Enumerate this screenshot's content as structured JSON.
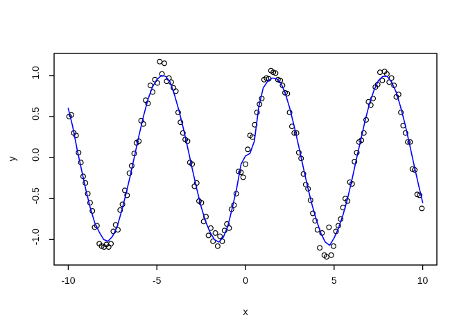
{
  "figure": {
    "kind": "r-base-plot",
    "background": "#ffffff",
    "palette": {
      "curve": "#0000ff",
      "points": "#000000",
      "axis": "#000000",
      "text": "#000000"
    }
  },
  "chart_data": {
    "type": "scatter",
    "title": "",
    "xlabel": "x",
    "ylabel": "y",
    "xlim": [
      -10.8,
      10.8
    ],
    "ylim": [
      -1.31,
      1.27
    ],
    "x_ticks": [
      -10,
      -5,
      0,
      5,
      10
    ],
    "y_ticks": [
      -1.0,
      -0.5,
      0.0,
      0.5,
      1.0
    ],
    "x_tick_labels": [
      "-10",
      "-5",
      "0",
      "5",
      "10"
    ],
    "y_tick_labels": [
      "-1.0",
      "-0.5",
      "0.0",
      "0.5",
      "1.0"
    ],
    "grid": false,
    "legend": null,
    "point_style": {
      "shape": "open-circle",
      "color": "#000000",
      "radius": 3.4
    },
    "series": [
      {
        "name": "observations",
        "type": "points",
        "points": [
          [
            -9.95,
            0.5
          ],
          [
            -9.82,
            0.52
          ],
          [
            -9.69,
            0.3
          ],
          [
            -9.56,
            0.27
          ],
          [
            -9.42,
            0.06
          ],
          [
            -9.29,
            -0.06
          ],
          [
            -9.16,
            -0.23
          ],
          [
            -9.03,
            -0.31
          ],
          [
            -8.9,
            -0.44
          ],
          [
            -8.77,
            -0.55
          ],
          [
            -8.64,
            -0.65
          ],
          [
            -8.51,
            -0.85
          ],
          [
            -8.38,
            -0.83
          ],
          [
            -8.25,
            -1.05
          ],
          [
            -8.12,
            -1.08
          ],
          [
            -7.98,
            -1.09
          ],
          [
            -7.85,
            -1.06
          ],
          [
            -7.72,
            -1.09
          ],
          [
            -7.59,
            -1.05
          ],
          [
            -7.46,
            -0.9
          ],
          [
            -7.33,
            -0.82
          ],
          [
            -7.2,
            -0.88
          ],
          [
            -7.07,
            -0.64
          ],
          [
            -6.94,
            -0.57
          ],
          [
            -6.81,
            -0.4
          ],
          [
            -6.68,
            -0.46
          ],
          [
            -6.55,
            -0.19
          ],
          [
            -6.42,
            -0.1
          ],
          [
            -6.28,
            0.05
          ],
          [
            -6.15,
            0.18
          ],
          [
            -6.02,
            0.2
          ],
          [
            -5.89,
            0.45
          ],
          [
            -5.76,
            0.41
          ],
          [
            -5.63,
            0.7
          ],
          [
            -5.5,
            0.66
          ],
          [
            -5.37,
            0.88
          ],
          [
            -5.24,
            0.8
          ],
          [
            -5.11,
            0.95
          ],
          [
            -4.97,
            0.91
          ],
          [
            -4.84,
            1.17
          ],
          [
            -4.71,
            1.02
          ],
          [
            -4.58,
            1.15
          ],
          [
            -4.45,
            0.93
          ],
          [
            -4.32,
            0.97
          ],
          [
            -4.19,
            0.92
          ],
          [
            -4.06,
            0.85
          ],
          [
            -3.93,
            0.81
          ],
          [
            -3.8,
            0.55
          ],
          [
            -3.67,
            0.43
          ],
          [
            -3.53,
            0.3
          ],
          [
            -3.4,
            0.22
          ],
          [
            -3.27,
            0.2
          ],
          [
            -3.14,
            -0.06
          ],
          [
            -3.01,
            -0.08
          ],
          [
            -2.88,
            -0.35
          ],
          [
            -2.75,
            -0.31
          ],
          [
            -2.62,
            -0.53
          ],
          [
            -2.49,
            -0.55
          ],
          [
            -2.36,
            -0.78
          ],
          [
            -2.23,
            -0.72
          ],
          [
            -2.09,
            -0.95
          ],
          [
            -1.96,
            -0.86
          ],
          [
            -1.83,
            -1.02
          ],
          [
            -1.7,
            -0.92
          ],
          [
            -1.57,
            -1.08
          ],
          [
            -1.44,
            -0.96
          ],
          [
            -1.31,
            -1.02
          ],
          [
            -1.18,
            -0.89
          ],
          [
            -1.05,
            -0.81
          ],
          [
            -0.92,
            -0.86
          ],
          [
            -0.79,
            -0.63
          ],
          [
            -0.65,
            -0.58
          ],
          [
            -0.52,
            -0.44
          ],
          [
            -0.39,
            -0.17
          ],
          [
            -0.26,
            -0.18
          ],
          [
            -0.13,
            -0.24
          ],
          [
            0.0,
            -0.08
          ],
          [
            0.13,
            0.1
          ],
          [
            0.26,
            0.27
          ],
          [
            0.39,
            0.25
          ],
          [
            0.52,
            0.4
          ],
          [
            0.65,
            0.55
          ],
          [
            0.79,
            0.65
          ],
          [
            0.92,
            0.72
          ],
          [
            1.05,
            0.95
          ],
          [
            1.18,
            0.97
          ],
          [
            1.31,
            0.96
          ],
          [
            1.44,
            1.06
          ],
          [
            1.57,
            1.04
          ],
          [
            1.7,
            1.03
          ],
          [
            1.83,
            0.95
          ],
          [
            1.96,
            0.94
          ],
          [
            2.09,
            0.88
          ],
          [
            2.23,
            0.79
          ],
          [
            2.36,
            0.78
          ],
          [
            2.49,
            0.55
          ],
          [
            2.62,
            0.38
          ],
          [
            2.75,
            0.3
          ],
          [
            2.88,
            0.3
          ],
          [
            3.01,
            0.06
          ],
          [
            3.14,
            -0.01
          ],
          [
            3.27,
            -0.2
          ],
          [
            3.4,
            -0.33
          ],
          [
            3.53,
            -0.38
          ],
          [
            3.67,
            -0.52
          ],
          [
            3.8,
            -0.68
          ],
          [
            3.93,
            -0.77
          ],
          [
            4.06,
            -0.88
          ],
          [
            4.19,
            -1.1
          ],
          [
            4.32,
            -0.92
          ],
          [
            4.45,
            -1.19
          ],
          [
            4.58,
            -1.21
          ],
          [
            4.71,
            -0.85
          ],
          [
            4.84,
            -1.19
          ],
          [
            4.97,
            -1.08
          ],
          [
            5.11,
            -0.9
          ],
          [
            5.24,
            -0.83
          ],
          [
            5.37,
            -0.75
          ],
          [
            5.5,
            -0.61
          ],
          [
            5.63,
            -0.5
          ],
          [
            5.76,
            -0.53
          ],
          [
            5.89,
            -0.3
          ],
          [
            6.02,
            -0.32
          ],
          [
            6.15,
            -0.05
          ],
          [
            6.28,
            0.06
          ],
          [
            6.41,
            0.19
          ],
          [
            6.54,
            0.21
          ],
          [
            6.68,
            0.3
          ],
          [
            6.81,
            0.46
          ],
          [
            6.94,
            0.68
          ],
          [
            7.07,
            0.64
          ],
          [
            7.2,
            0.72
          ],
          [
            7.33,
            0.86
          ],
          [
            7.46,
            0.89
          ],
          [
            7.59,
            1.04
          ],
          [
            7.72,
            0.94
          ],
          [
            7.85,
            1.05
          ],
          [
            7.98,
            1.02
          ],
          [
            8.11,
            0.92
          ],
          [
            8.24,
            0.97
          ],
          [
            8.38,
            0.88
          ],
          [
            8.51,
            0.74
          ],
          [
            8.64,
            0.77
          ],
          [
            8.77,
            0.55
          ],
          [
            8.9,
            0.39
          ],
          [
            9.03,
            0.3
          ],
          [
            9.16,
            0.19
          ],
          [
            9.29,
            0.19
          ],
          [
            9.42,
            -0.14
          ],
          [
            9.55,
            -0.15
          ],
          [
            9.69,
            -0.45
          ],
          [
            9.82,
            -0.46
          ],
          [
            9.95,
            -0.62
          ]
        ]
      },
      {
        "name": "smooth-fit",
        "type": "line",
        "color": "#0000ff",
        "width": 1.6,
        "points": [
          [
            -10,
            0.6
          ],
          [
            -9.75,
            0.38
          ],
          [
            -9.5,
            0.1
          ],
          [
            -9.25,
            -0.15
          ],
          [
            -9,
            -0.4
          ],
          [
            -8.75,
            -0.62
          ],
          [
            -8.5,
            -0.8
          ],
          [
            -8.25,
            -0.91
          ],
          [
            -8,
            -1.0
          ],
          [
            -7.75,
            -1.02
          ],
          [
            -7.5,
            -0.96
          ],
          [
            -7.25,
            -0.85
          ],
          [
            -7,
            -0.66
          ],
          [
            -6.75,
            -0.45
          ],
          [
            -6.5,
            -0.22
          ],
          [
            -6.25,
            0.03
          ],
          [
            -6,
            0.28
          ],
          [
            -5.75,
            0.51
          ],
          [
            -5.5,
            0.71
          ],
          [
            -5.25,
            0.86
          ],
          [
            -5,
            0.95
          ],
          [
            -4.75,
            1.0
          ],
          [
            -4.5,
            0.99
          ],
          [
            -4.25,
            0.92
          ],
          [
            -4,
            0.76
          ],
          [
            -3.75,
            0.57
          ],
          [
            -3.5,
            0.35
          ],
          [
            -3.25,
            0.11
          ],
          [
            -3,
            -0.14
          ],
          [
            -2.75,
            -0.38
          ],
          [
            -2.5,
            -0.6
          ],
          [
            -2.25,
            -0.78
          ],
          [
            -2,
            -0.91
          ],
          [
            -1.75,
            -1.0
          ],
          [
            -1.5,
            -1.03
          ],
          [
            -1.25,
            -0.97
          ],
          [
            -1,
            -0.84
          ],
          [
            -0.75,
            -0.62
          ],
          [
            -0.5,
            -0.38
          ],
          [
            -0.25,
            -0.08
          ],
          [
            0,
            0.02
          ],
          [
            0.25,
            0.05
          ],
          [
            0.5,
            0.2
          ],
          [
            0.75,
            0.62
          ],
          [
            1,
            0.85
          ],
          [
            1.25,
            0.93
          ],
          [
            1.5,
            0.97
          ],
          [
            1.75,
            0.96
          ],
          [
            2,
            0.91
          ],
          [
            2.25,
            0.78
          ],
          [
            2.5,
            0.6
          ],
          [
            2.75,
            0.38
          ],
          [
            3,
            0.14
          ],
          [
            3.25,
            -0.11
          ],
          [
            3.5,
            -0.35
          ],
          [
            3.75,
            -0.57
          ],
          [
            4,
            -0.76
          ],
          [
            4.25,
            -0.92
          ],
          [
            4.5,
            -1.03
          ],
          [
            4.75,
            -1.07
          ],
          [
            5,
            -0.98
          ],
          [
            5.25,
            -0.86
          ],
          [
            5.5,
            -0.7
          ],
          [
            5.75,
            -0.51
          ],
          [
            6,
            -0.28
          ],
          [
            6.25,
            -0.03
          ],
          [
            6.5,
            0.21
          ],
          [
            6.75,
            0.45
          ],
          [
            7,
            0.66
          ],
          [
            7.25,
            0.82
          ],
          [
            7.5,
            0.94
          ],
          [
            7.75,
            0.99
          ],
          [
            8,
            0.99
          ],
          [
            8.25,
            0.92
          ],
          [
            8.5,
            0.8
          ],
          [
            8.75,
            0.62
          ],
          [
            9,
            0.41
          ],
          [
            9.25,
            0.17
          ],
          [
            9.5,
            -0.08
          ],
          [
            9.75,
            -0.32
          ],
          [
            10,
            -0.55
          ]
        ]
      }
    ]
  }
}
